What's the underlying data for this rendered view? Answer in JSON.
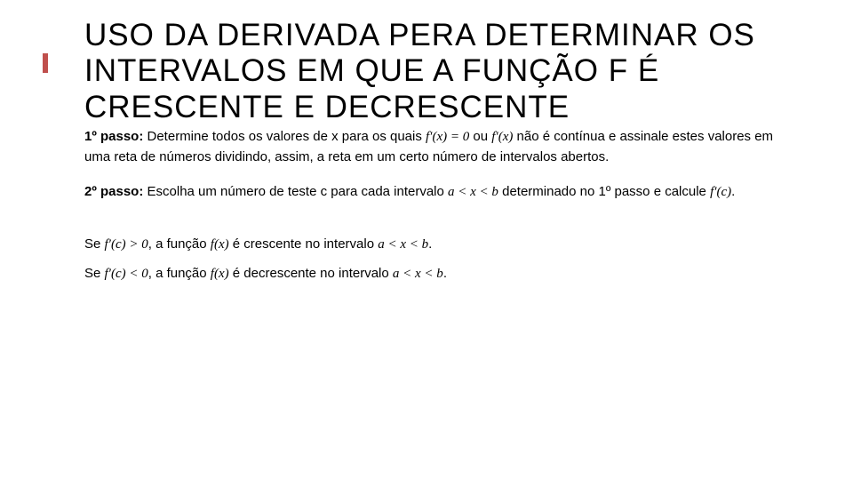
{
  "title_fontsize": 35,
  "body_fontsize": 15,
  "title_color": "#000000",
  "accent_color": "#c0504d",
  "background_color": "#ffffff",
  "title": "USO DA DERIVADA PERA DETERMINAR OS INTERVALOS EM QUE A FUNÇÃO F É CRESCENTE E DECRESCENTE",
  "step1": {
    "label": "1º passo:",
    "text_a": " Determine todos os valores de x para os quais ",
    "math_a": "f′(x) = 0",
    "text_b": " ou ",
    "math_b": "f′(x)",
    "text_c": " não é contínua e assinale estes valores em uma reta de números dividindo, assim, a reta em um certo número de intervalos abertos."
  },
  "step2": {
    "label": "2º passo:",
    "text_a": " Escolha um número de teste c para cada intervalo ",
    "math_a": "a < x < b",
    "text_b": " determinado no 1º passo e calcule ",
    "math_b": "f′(c)",
    "text_c": "."
  },
  "result1": {
    "prefix": "Se ",
    "math_a": "f′(c) > 0",
    "mid": ", a função ",
    "math_b": "f(x)",
    "text": " é crescente no intervalo ",
    "math_c": "a < x < b",
    "suffix": "."
  },
  "result2": {
    "prefix": "Se ",
    "math_a": "f′(c) < 0",
    "mid": ", a função ",
    "math_b": "f(x)",
    "text": " é decrescente no intervalo ",
    "math_c": "a < x < b",
    "suffix": "."
  }
}
